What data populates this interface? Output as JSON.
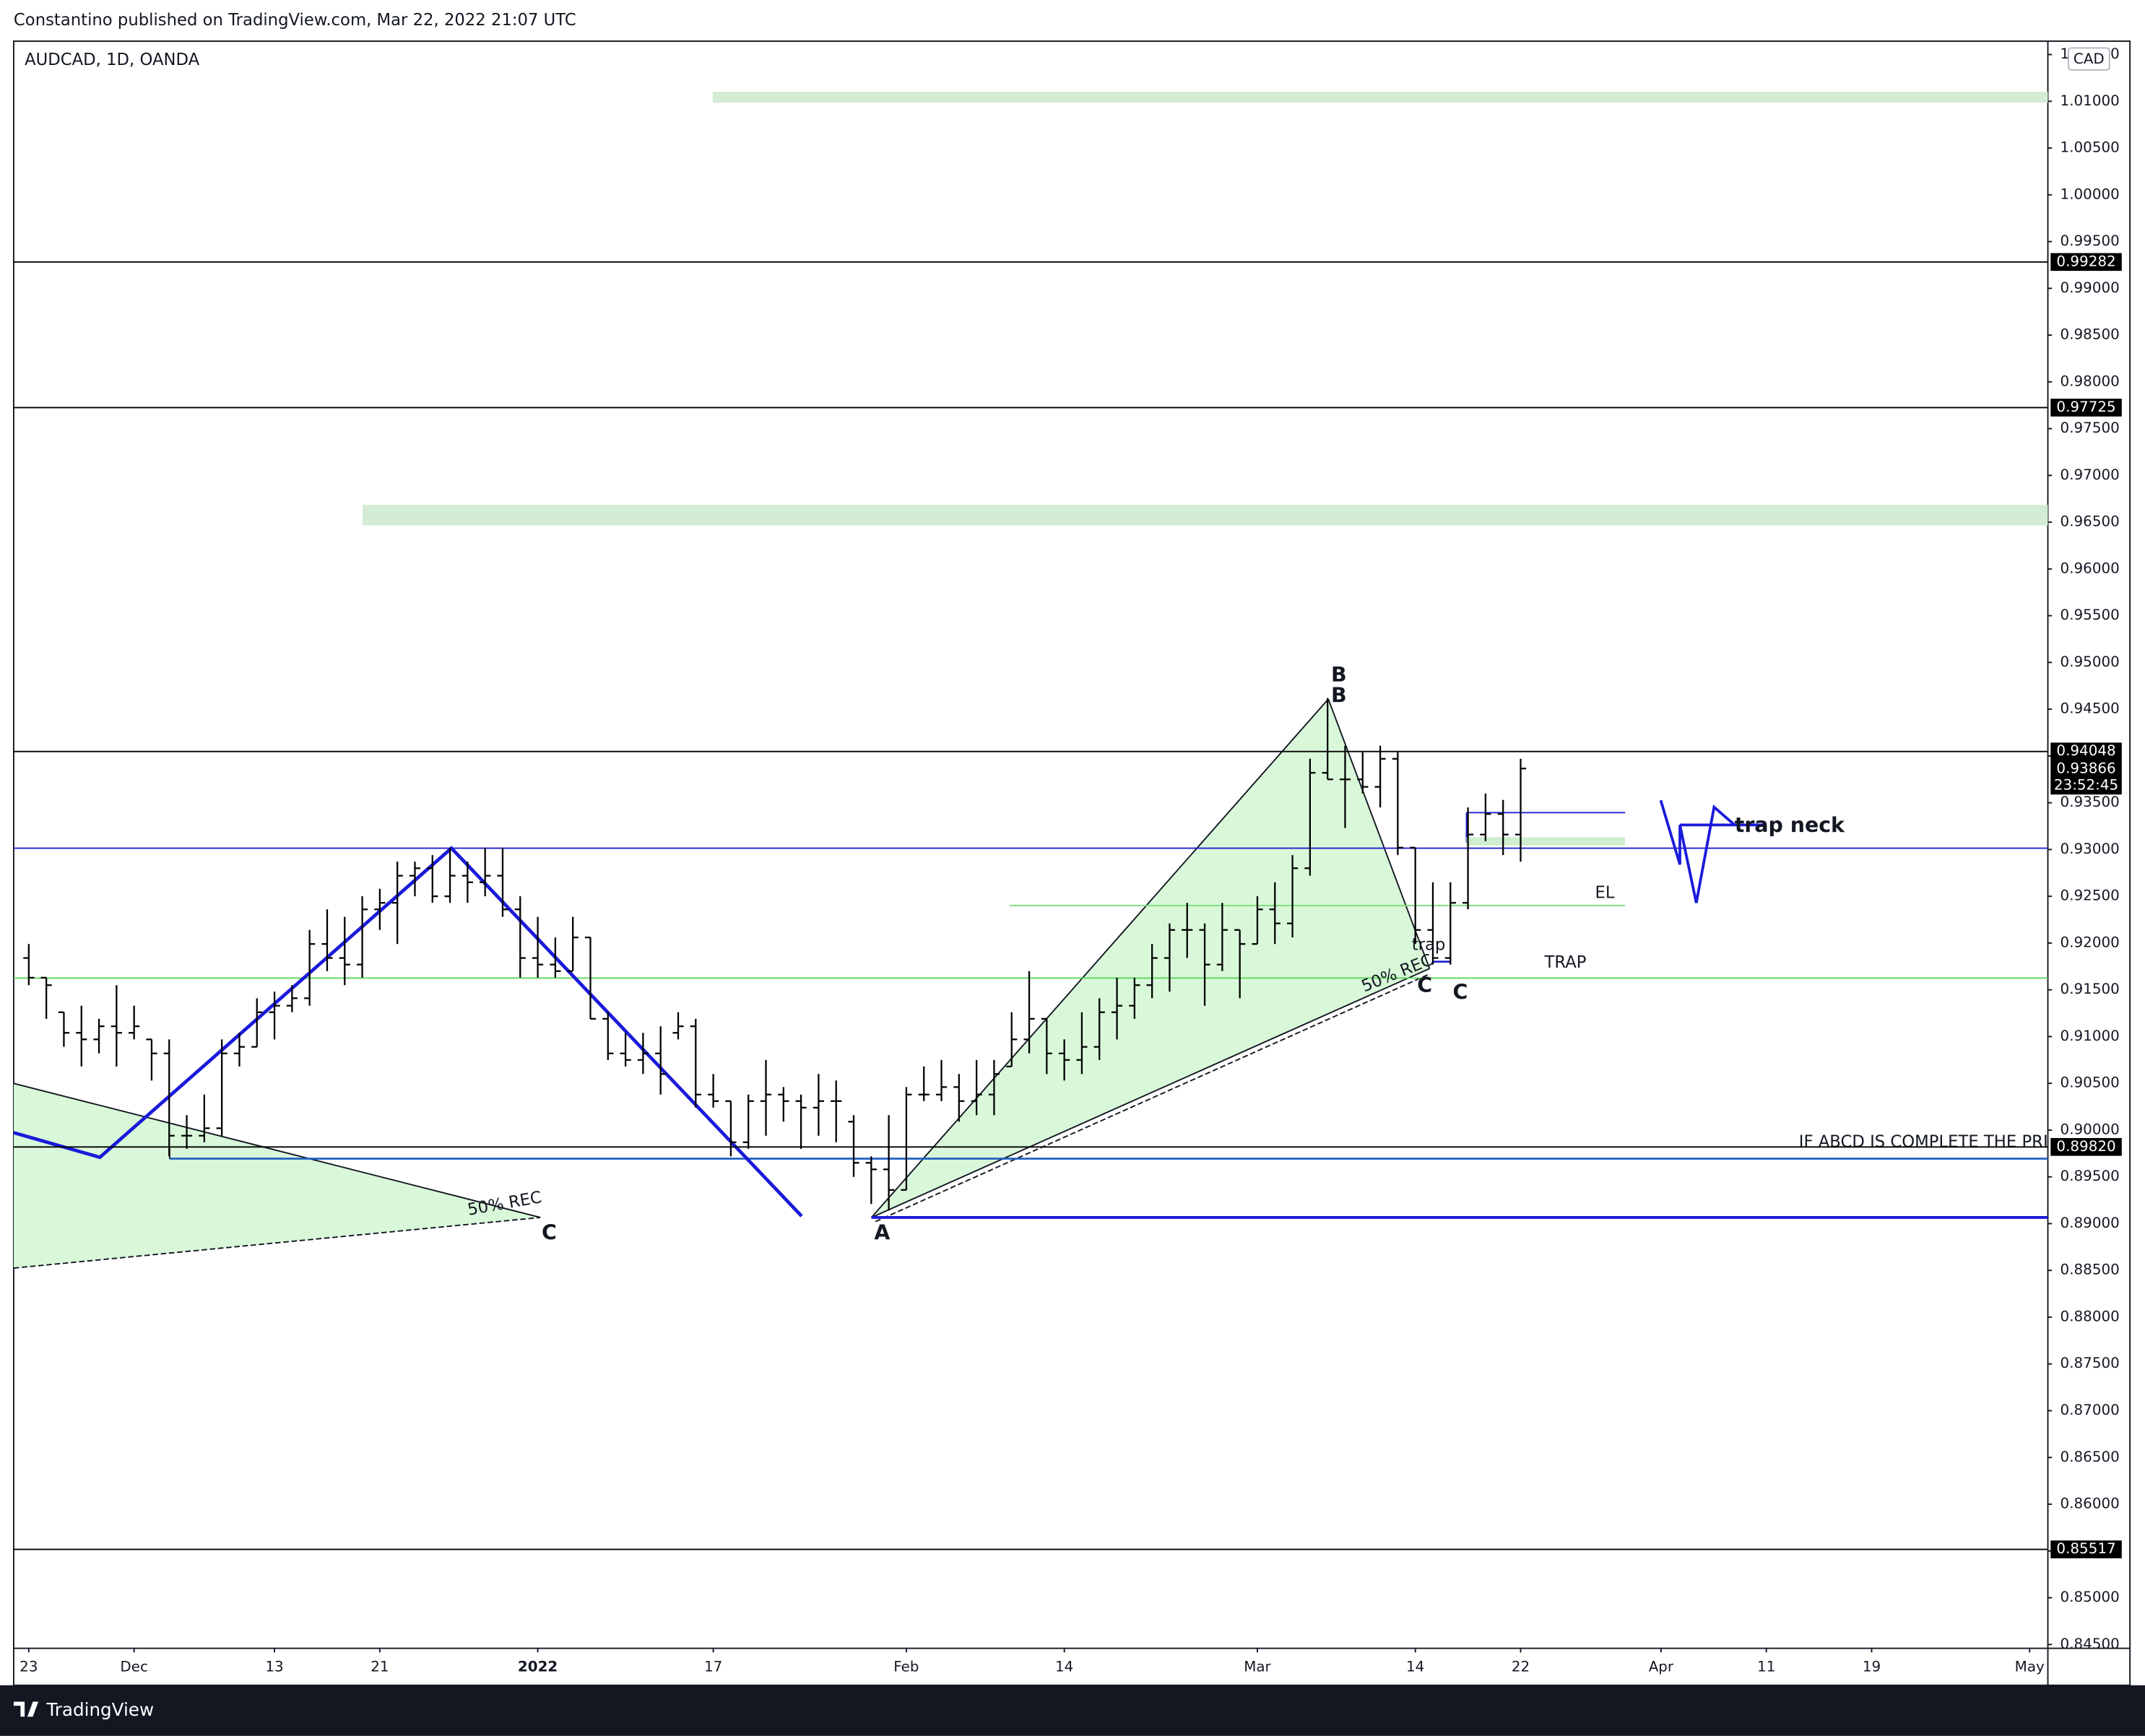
{
  "header": {
    "publisher": "Constantino published on TradingView.com, Mar 22, 2022 21:07 UTC"
  },
  "chart_data": {
    "type": "ohlc",
    "symbol": "AUDCAD, 1D, OANDA",
    "currency": "CAD",
    "color": "#000000",
    "open": [
      0.9184,
      0.9163,
      0.9126,
      0.9104,
      0.9097,
      0.9111,
      0.9104,
      0.9097,
      0.9082,
      0.8994,
      0.8994,
      0.9002,
      0.9082,
      0.9089,
      0.9126,
      0.9133,
      0.9141,
      0.9199,
      0.9184,
      0.9177,
      0.9236,
      0.9243,
      0.9272,
      0.928,
      0.925,
      0.9272,
      0.9265,
      0.9272,
      0.9236,
      0.9184,
      0.9177,
      0.917,
      0.9206,
      0.9119,
      0.9082,
      0.9075,
      0.9082,
      0.9104,
      0.9111,
      0.9038,
      0.9031,
      0.8987,
      0.9031,
      0.9038,
      0.9031,
      0.9024,
      0.9031,
      0.9009,
      0.8965,
      0.8958,
      0.8936,
      0.9038,
      0.9038,
      0.9046,
      0.9031,
      0.9038,
      0.9068,
      0.9097,
      0.9119,
      0.9082,
      0.9075,
      0.9089,
      0.9126,
      0.9133,
      0.9155,
      0.9184,
      0.9214,
      0.9214,
      0.9177,
      0.9214,
      0.9199,
      0.9236,
      0.9221,
      0.928,
      0.9382,
      0.9375,
      0.9375,
      0.9367,
      0.9397,
      0.9302,
      0.9214,
      0.9184,
      0.9243,
      0.9316,
      0.9338,
      0.9316
    ],
    "high": [
      0.9199,
      0.9163,
      0.9126,
      0.9133,
      0.9119,
      0.9155,
      0.9133,
      0.9097,
      0.9097,
      0.9016,
      0.9038,
      0.9097,
      0.9104,
      0.9141,
      0.9148,
      0.9155,
      0.9214,
      0.9236,
      0.9228,
      0.925,
      0.9258,
      0.9287,
      0.9287,
      0.9294,
      0.9302,
      0.9287,
      0.9302,
      0.9302,
      0.925,
      0.9228,
      0.9206,
      0.9228,
      0.9206,
      0.9126,
      0.9104,
      0.9104,
      0.9111,
      0.9126,
      0.9119,
      0.906,
      0.9031,
      0.9038,
      0.9075,
      0.9046,
      0.9038,
      0.906,
      0.9053,
      0.9016,
      0.8972,
      0.9016,
      0.9046,
      0.9068,
      0.9075,
      0.906,
      0.9075,
      0.9075,
      0.9126,
      0.917,
      0.9119,
      0.9097,
      0.9126,
      0.9141,
      0.9163,
      0.9163,
      0.9199,
      0.9221,
      0.9243,
      0.9221,
      0.9243,
      0.9214,
      0.925,
      0.9265,
      0.9294,
      0.9397,
      0.9462,
      0.9411,
      0.9404,
      0.9411,
      0.9404,
      0.9302,
      0.9265,
      0.9265,
      0.9345,
      0.936,
      0.9353,
      0.9397
    ],
    "low": [
      0.9155,
      0.9119,
      0.9089,
      0.9068,
      0.9082,
      0.9068,
      0.9097,
      0.9053,
      0.8972,
      0.898,
      0.8987,
      0.8994,
      0.9068,
      0.9089,
      0.9097,
      0.9126,
      0.9133,
      0.917,
      0.9155,
      0.9163,
      0.9214,
      0.9199,
      0.925,
      0.9243,
      0.9243,
      0.9243,
      0.925,
      0.9228,
      0.9163,
      0.9163,
      0.9163,
      0.917,
      0.9119,
      0.9075,
      0.9068,
      0.906,
      0.9038,
      0.9097,
      0.9024,
      0.9024,
      0.8972,
      0.898,
      0.8994,
      0.9009,
      0.898,
      0.8994,
      0.8987,
      0.895,
      0.8921,
      0.8914,
      0.8936,
      0.9031,
      0.9031,
      0.9009,
      0.9016,
      0.9016,
      0.9068,
      0.9082,
      0.906,
      0.9053,
      0.906,
      0.9075,
      0.9097,
      0.9119,
      0.9141,
      0.9148,
      0.9184,
      0.9133,
      0.917,
      0.9141,
      0.9199,
      0.9199,
      0.9206,
      0.9272,
      0.9375,
      0.9323,
      0.936,
      0.9345,
      0.9294,
      0.9199,
      0.9177,
      0.9177,
      0.9236,
      0.9309,
      0.9294,
      0.9287
    ],
    "close": [
      0.9163,
      0.9155,
      0.9104,
      0.9097,
      0.9111,
      0.9104,
      0.9111,
      0.9082,
      0.8994,
      0.8994,
      0.9002,
      0.9082,
      0.9089,
      0.9126,
      0.9133,
      0.9141,
      0.9199,
      0.9184,
      0.9177,
      0.9236,
      0.9243,
      0.9272,
      0.928,
      0.925,
      0.9272,
      0.9265,
      0.9272,
      0.9236,
      0.9184,
      0.9177,
      0.917,
      0.9206,
      0.9119,
      0.9082,
      0.9075,
      0.9082,
      0.906,
      0.9111,
      0.9038,
      0.9031,
      0.8987,
      0.9031,
      0.9038,
      0.9031,
      0.9024,
      0.9031,
      0.9031,
      0.8965,
      0.8958,
      0.8936,
      0.9038,
      0.9038,
      0.9046,
      0.9031,
      0.9038,
      0.906,
      0.9097,
      0.9119,
      0.9082,
      0.9075,
      0.9089,
      0.9126,
      0.9133,
      0.9155,
      0.9184,
      0.9214,
      0.9214,
      0.9177,
      0.9214,
      0.9199,
      0.9236,
      0.9221,
      0.928,
      0.9382,
      0.9375,
      0.9375,
      0.9367,
      0.9397,
      0.9302,
      0.9214,
      0.9184,
      0.9243,
      0.9316,
      0.9338,
      0.9316,
      0.93866
    ],
    "xlim": [
      -0.86,
      115.04
    ],
    "xticks": [
      {
        "value": 0,
        "label": "23"
      },
      {
        "value": 6,
        "label": "Dec"
      },
      {
        "value": 14,
        "label": "13"
      },
      {
        "value": 20,
        "label": "21"
      },
      {
        "value": 29,
        "label": "2022"
      },
      {
        "value": 39,
        "label": "17"
      },
      {
        "value": 50,
        "label": "Feb"
      },
      {
        "value": 59,
        "label": "14"
      },
      {
        "value": 70,
        "label": "Mar"
      },
      {
        "value": 79,
        "label": "14"
      },
      {
        "value": 85,
        "label": "22"
      },
      {
        "value": 93,
        "label": "Apr"
      },
      {
        "value": 99,
        "label": "11"
      },
      {
        "value": 105,
        "label": "19"
      },
      {
        "value": 114,
        "label": "May"
      }
    ],
    "ylim": [
      0.84459,
      1.01643
    ],
    "yticks": [
      {
        "value": 0.845,
        "label": "0.84500"
      },
      {
        "value": 0.85,
        "label": "0.85000"
      },
      {
        "value": 0.855,
        "label": "0.85500"
      },
      {
        "value": 0.86,
        "label": "0.86000"
      },
      {
        "value": 0.865,
        "label": "0.86500"
      },
      {
        "value": 0.87,
        "label": "0.87000"
      },
      {
        "value": 0.875,
        "label": "0.87500"
      },
      {
        "value": 0.88,
        "label": "0.88000"
      },
      {
        "value": 0.885,
        "label": "0.88500"
      },
      {
        "value": 0.89,
        "label": "0.89000"
      },
      {
        "value": 0.895,
        "label": "0.89500"
      },
      {
        "value": 0.9,
        "label": "0.90000"
      },
      {
        "value": 0.905,
        "label": "0.90500"
      },
      {
        "value": 0.91,
        "label": "0.91000"
      },
      {
        "value": 0.915,
        "label": "0.91500"
      },
      {
        "value": 0.92,
        "label": "0.92000"
      },
      {
        "value": 0.925,
        "label": "0.92500"
      },
      {
        "value": 0.93,
        "label": "0.93000"
      },
      {
        "value": 0.935,
        "label": "0.93500"
      },
      {
        "value": 0.94,
        "label": "0.94000"
      },
      {
        "value": 0.945,
        "label": "0.94500"
      },
      {
        "value": 0.95,
        "label": "0.95000"
      },
      {
        "value": 0.955,
        "label": "0.95500"
      },
      {
        "value": 0.96,
        "label": "0.96000"
      },
      {
        "value": 0.965,
        "label": "0.96500"
      },
      {
        "value": 0.97,
        "label": "0.97000"
      },
      {
        "value": 0.975,
        "label": "0.97500"
      },
      {
        "value": 0.98,
        "label": "0.98000"
      },
      {
        "value": 0.985,
        "label": "0.98500"
      },
      {
        "value": 0.99,
        "label": "0.99000"
      },
      {
        "value": 0.995,
        "label": "0.99500"
      },
      {
        "value": 1.0,
        "label": "1.00000"
      },
      {
        "value": 1.005,
        "label": "1.00500"
      },
      {
        "value": 1.01,
        "label": "1.01000"
      },
      {
        "value": 1.015,
        "label": "1.01500"
      }
    ],
    "hline_color": "#000000",
    "hlines": [
      {
        "value": 0.99282,
        "label": "0.99282"
      },
      {
        "value": 0.97725,
        "label": "0.97725"
      },
      {
        "value": 0.94048,
        "label": "0.94048"
      },
      {
        "value": 0.8982,
        "label": "0.89820"
      },
      {
        "value": 0.85517,
        "label": "0.85517"
      }
    ],
    "last_price": {
      "value": 0.93866,
      "label": "0.93866"
    },
    "countdown": "23:52:45",
    "annotations": [
      "50% REC",
      "C",
      "A",
      "B",
      "B",
      "trap",
      "50% REC",
      "C",
      "C",
      "EL",
      "TRAP",
      "trap neck",
      "IF ABCD IS COMPLETE THE PRICE"
    ]
  },
  "footer": {
    "brand": "TradingView"
  }
}
